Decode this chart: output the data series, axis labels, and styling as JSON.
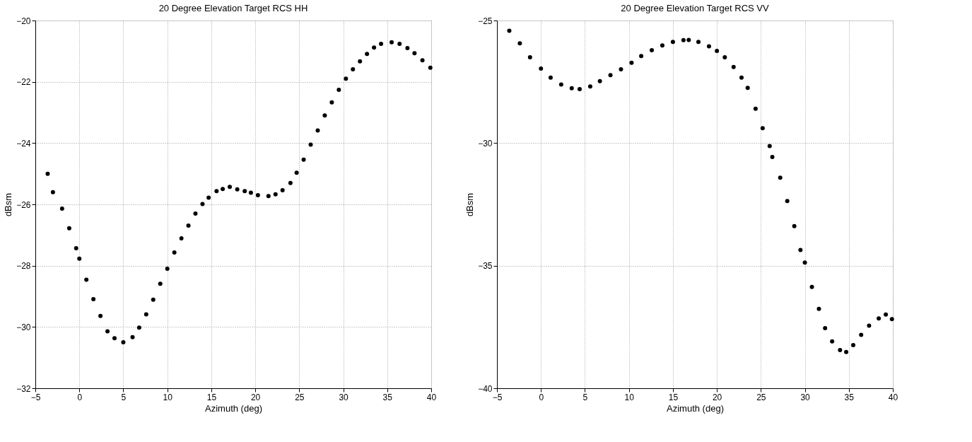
{
  "chart_data": [
    {
      "type": "scatter",
      "title": "20 Degree Elevation Target RCS HH",
      "xlabel": "Azimuth (deg)",
      "ylabel": "dBsm",
      "marker": "circle",
      "grid": true,
      "xlim": [
        -5,
        40
      ],
      "xticks": [
        -5,
        0,
        5,
        10,
        15,
        20,
        25,
        30,
        35,
        40
      ],
      "ylim": [
        -32,
        -20
      ],
      "yticks": [
        -32,
        -30,
        -28,
        -26,
        -24,
        -22,
        -20
      ],
      "series": [
        {
          "color": "#000000",
          "x": [
            -3.6,
            -3.0,
            -1.96,
            -1.15,
            -0.36,
            0.0,
            0.8,
            1.6,
            2.4,
            3.2,
            4.0,
            5.0,
            6.05,
            6.8,
            7.6,
            8.4,
            9.2,
            10.0,
            10.8,
            11.6,
            12.4,
            13.2,
            14.0,
            14.7,
            15.6,
            16.3,
            17.1,
            17.95,
            18.8,
            19.5,
            20.3,
            21.5,
            22.3,
            23.1,
            24.0,
            24.7,
            25.5,
            26.3,
            27.1,
            27.9,
            28.7,
            29.5,
            30.3,
            31.1,
            31.9,
            32.7,
            33.5,
            34.3,
            35.5,
            36.4,
            37.3,
            38.1,
            39.0,
            39.9
          ],
          "values": [
            -25.0,
            -25.6,
            -26.14,
            -26.78,
            -27.43,
            -27.77,
            -28.46,
            -29.09,
            -29.64,
            -30.14,
            -30.37,
            -30.5,
            -30.33,
            -30.02,
            -29.59,
            -29.11,
            -28.59,
            -28.1,
            -27.57,
            -27.11,
            -26.69,
            -26.3,
            -25.99,
            -25.78,
            -25.57,
            -25.5,
            -25.43,
            -25.51,
            -25.57,
            -25.62,
            -25.7,
            -25.73,
            -25.67,
            -25.54,
            -25.3,
            -24.97,
            -24.54,
            -24.05,
            -23.59,
            -23.1,
            -22.67,
            -22.26,
            -21.9,
            -21.59,
            -21.33,
            -21.09,
            -20.88,
            -20.76,
            -20.71,
            -20.76,
            -20.9,
            -21.07,
            -21.3,
            -21.54
          ]
        }
      ]
    },
    {
      "type": "scatter",
      "title": "20 Degree Elevation Target RCS VV",
      "xlabel": "Azimuth (deg)",
      "ylabel": "dBsm",
      "marker": "circle",
      "grid": true,
      "xlim": [
        -5,
        40
      ],
      "xticks": [
        -5,
        0,
        5,
        10,
        15,
        20,
        25,
        30,
        35,
        40
      ],
      "ylim": [
        -40,
        -25
      ],
      "yticks": [
        -40,
        -35,
        -30,
        -25
      ],
      "series": [
        {
          "color": "#000000",
          "x": [
            -3.6,
            -2.4,
            -1.24,
            0.0,
            1.1,
            2.3,
            3.5,
            4.4,
            5.6,
            6.7,
            7.9,
            9.1,
            10.3,
            11.4,
            12.6,
            13.8,
            15.0,
            16.2,
            16.8,
            17.9,
            19.1,
            20.0,
            20.9,
            21.9,
            22.8,
            23.5,
            24.4,
            25.2,
            26.0,
            26.3,
            27.2,
            28.0,
            28.8,
            29.5,
            30.0,
            30.8,
            31.6,
            32.3,
            33.1,
            34.0,
            34.7,
            35.5,
            36.4,
            37.3,
            38.4,
            39.2,
            39.9
          ],
          "values": [
            -25.42,
            -25.93,
            -26.5,
            -26.96,
            -27.33,
            -27.61,
            -27.76,
            -27.8,
            -27.69,
            -27.47,
            -27.23,
            -26.99,
            -26.72,
            -26.45,
            -26.21,
            -26.02,
            -25.87,
            -25.8,
            -25.79,
            -25.87,
            -26.05,
            -26.24,
            -26.5,
            -26.9,
            -27.33,
            -27.75,
            -28.6,
            -29.39,
            -30.12,
            -30.57,
            -31.41,
            -32.36,
            -33.39,
            -34.36,
            -34.87,
            -35.87,
            -36.76,
            -37.55,
            -38.09,
            -38.44,
            -38.52,
            -38.24,
            -37.82,
            -37.45,
            -37.15,
            -36.99,
            -37.18
          ]
        }
      ]
    }
  ]
}
